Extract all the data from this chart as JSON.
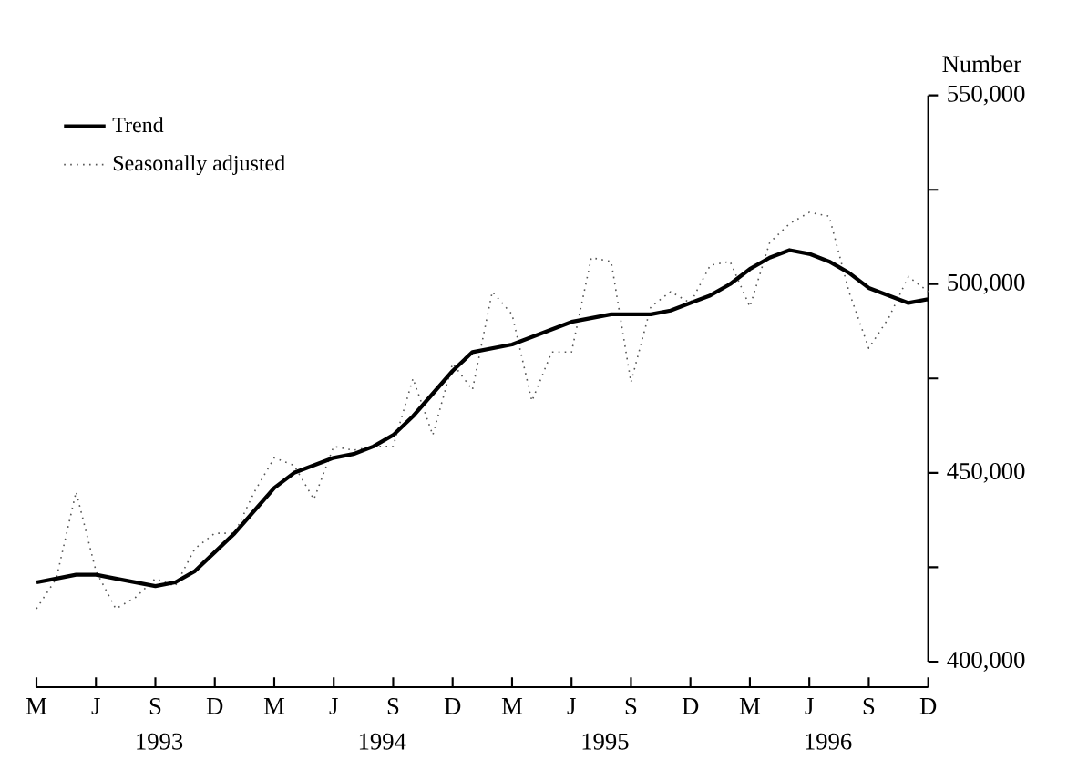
{
  "chart_data": {
    "type": "line",
    "ylabel": "Number",
    "categories": [
      "M",
      null,
      null,
      "J",
      null,
      null,
      "S",
      null,
      null,
      "D",
      null,
      null,
      "M",
      null,
      null,
      "J",
      null,
      null,
      "S",
      null,
      null,
      "D",
      null,
      null,
      "M",
      null,
      null,
      "J",
      null,
      null,
      "S",
      null,
      null,
      "D",
      null,
      null,
      "M",
      null,
      null,
      "J",
      null,
      null,
      "S",
      null,
      null,
      "D"
    ],
    "series": [
      {
        "name": "Trend",
        "color": "#000000",
        "line_style": "solid",
        "values": [
          421000,
          422000,
          423000,
          423000,
          422000,
          421000,
          420000,
          421000,
          424000,
          429000,
          434000,
          440000,
          446000,
          450000,
          452000,
          454000,
          455000,
          457000,
          460000,
          465000,
          471000,
          477000,
          482000,
          483000,
          484000,
          486000,
          488000,
          490000,
          491000,
          492000,
          492000,
          492000,
          493000,
          495000,
          497000,
          500000,
          504000,
          507000,
          509000,
          508000,
          506000,
          503000,
          499000,
          497000,
          495000,
          496000
        ]
      },
      {
        "name": "Seasonally adjusted",
        "color": "#555555",
        "line_style": "dotted",
        "values": [
          414000,
          422000,
          445000,
          424000,
          414000,
          417000,
          422000,
          420000,
          430000,
          434000,
          434000,
          445000,
          454000,
          452000,
          443000,
          457000,
          456000,
          457000,
          457000,
          475000,
          460000,
          479000,
          472000,
          498000,
          492000,
          469000,
          482000,
          482000,
          507000,
          506000,
          474000,
          494000,
          498000,
          495000,
          505000,
          506000,
          494000,
          511000,
          516000,
          519000,
          518000,
          498000,
          483000,
          491000,
          502000,
          498000
        ]
      }
    ],
    "ylim": [
      400000,
      550000
    ],
    "yticks": [
      {
        "value": 400000,
        "label": "400,000"
      },
      {
        "value": 425000,
        "label": null
      },
      {
        "value": 450000,
        "label": "450,000"
      },
      {
        "value": 475000,
        "label": null
      },
      {
        "value": 500000,
        "label": "500,000"
      },
      {
        "value": 525000,
        "label": null
      },
      {
        "value": 550000,
        "label": "550,000"
      }
    ],
    "annotations": [
      "1993",
      "1994",
      "1995",
      "1996"
    ],
    "legend": "top left",
    "grid": false,
    "marker": "none"
  }
}
